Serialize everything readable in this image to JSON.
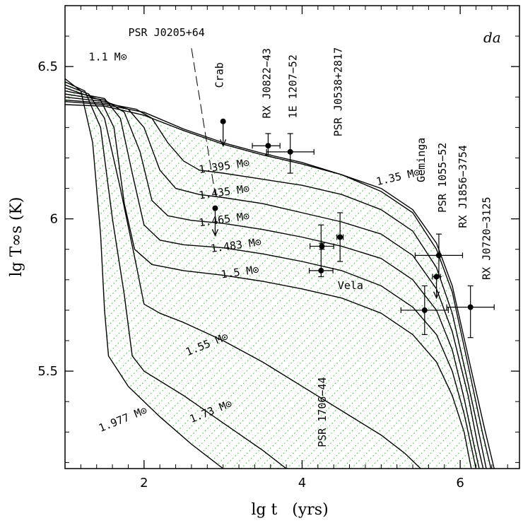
{
  "chart_data": {
    "type": "line",
    "title": "",
    "panel_label": "da",
    "xlabel": "lg t   (yrs)",
    "ylabel": "lg T∞s  (K)",
    "xlim": [
      1,
      6.75
    ],
    "ylim": [
      5.18,
      6.7
    ],
    "x_ticks": [
      {
        "v": 2,
        "label": "2"
      },
      {
        "v": 4,
        "label": "4"
      },
      {
        "v": 6,
        "label": "6"
      }
    ],
    "y_ticks": [
      {
        "v": 5.5,
        "label": "5.5"
      },
      {
        "v": 6,
        "label": "6"
      },
      {
        "v": 6.5,
        "label": "6.5"
      }
    ],
    "shaded_region": {
      "color": "#33cc33",
      "style": "dotted diagonal hatching",
      "description_free": true
    },
    "series": [
      {
        "name": "1.1 M⊙",
        "points": [
          [
            1,
            6.375
          ],
          [
            1.5,
            6.37
          ],
          [
            2,
            6.34
          ],
          [
            2.5,
            6.29
          ],
          [
            3,
            6.245
          ],
          [
            3.5,
            6.21
          ],
          [
            4,
            6.18
          ],
          [
            4.5,
            6.145
          ],
          [
            5,
            6.1
          ],
          [
            5.4,
            6.03
          ],
          [
            5.7,
            5.92
          ],
          [
            5.9,
            5.78
          ],
          [
            6.1,
            5.55
          ],
          [
            6.3,
            5.32
          ],
          [
            6.43,
            5.18
          ]
        ]
      },
      {
        "name": "1.35 M⊙",
        "points": [
          [
            1,
            6.385
          ],
          [
            1.5,
            6.375
          ],
          [
            2,
            6.35
          ],
          [
            2.5,
            6.295
          ],
          [
            3,
            6.25
          ],
          [
            3.5,
            6.215
          ],
          [
            4,
            6.185
          ],
          [
            4.5,
            6.145
          ],
          [
            5,
            6.09
          ],
          [
            5.4,
            6.02
          ],
          [
            5.7,
            5.9
          ],
          [
            5.9,
            5.76
          ],
          [
            6.1,
            5.52
          ],
          [
            6.28,
            5.3
          ],
          [
            6.39,
            5.18
          ]
        ]
      },
      {
        "name": "1.395 M⊙",
        "points": [
          [
            1,
            6.39
          ],
          [
            1.5,
            6.38
          ],
          [
            1.9,
            6.36
          ],
          [
            2.1,
            6.33
          ],
          [
            2.3,
            6.25
          ],
          [
            2.5,
            6.19
          ],
          [
            2.7,
            6.16
          ],
          [
            3,
            6.15
          ],
          [
            3.5,
            6.13
          ],
          [
            4,
            6.11
          ],
          [
            4.5,
            6.08
          ],
          [
            5,
            6.03
          ],
          [
            5.4,
            5.96
          ],
          [
            5.7,
            5.84
          ],
          [
            5.9,
            5.69
          ],
          [
            6.1,
            5.46
          ],
          [
            6.25,
            5.28
          ],
          [
            6.33,
            5.18
          ]
        ]
      },
      {
        "name": "1.435 M⊙",
        "points": [
          [
            1,
            6.4
          ],
          [
            1.5,
            6.385
          ],
          [
            1.8,
            6.36
          ],
          [
            2,
            6.3
          ],
          [
            2.2,
            6.16
          ],
          [
            2.4,
            6.1
          ],
          [
            2.7,
            6.08
          ],
          [
            3,
            6.07
          ],
          [
            3.5,
            6.05
          ],
          [
            4,
            6.02
          ],
          [
            4.5,
            5.99
          ],
          [
            5,
            5.95
          ],
          [
            5.4,
            5.88
          ],
          [
            5.7,
            5.77
          ],
          [
            5.9,
            5.63
          ],
          [
            6.1,
            5.42
          ],
          [
            6.22,
            5.26
          ],
          [
            6.29,
            5.18
          ]
        ]
      },
      {
        "name": "1.465 M⊙",
        "points": [
          [
            1,
            6.41
          ],
          [
            1.5,
            6.39
          ],
          [
            1.75,
            6.35
          ],
          [
            1.95,
            6.22
          ],
          [
            2.1,
            6.06
          ],
          [
            2.3,
            6.01
          ],
          [
            2.6,
            5.995
          ],
          [
            3,
            5.985
          ],
          [
            3.5,
            5.965
          ],
          [
            4,
            5.94
          ],
          [
            4.5,
            5.91
          ],
          [
            5,
            5.87
          ],
          [
            5.4,
            5.8
          ],
          [
            5.7,
            5.7
          ],
          [
            5.9,
            5.57
          ],
          [
            6.05,
            5.41
          ],
          [
            6.18,
            5.25
          ],
          [
            6.24,
            5.18
          ]
        ]
      },
      {
        "name": "1.483 M⊙",
        "points": [
          [
            1,
            6.42
          ],
          [
            1.5,
            6.395
          ],
          [
            1.7,
            6.33
          ],
          [
            1.85,
            6.15
          ],
          [
            2,
            5.98
          ],
          [
            2.2,
            5.93
          ],
          [
            2.5,
            5.915
          ],
          [
            3,
            5.905
          ],
          [
            3.5,
            5.885
          ],
          [
            4,
            5.86
          ],
          [
            4.5,
            5.83
          ],
          [
            5,
            5.78
          ],
          [
            5.4,
            5.71
          ],
          [
            5.7,
            5.62
          ],
          [
            5.9,
            5.5
          ],
          [
            6.05,
            5.36
          ],
          [
            6.15,
            5.24
          ],
          [
            6.2,
            5.18
          ]
        ]
      },
      {
        "name": "1.5 M⊙",
        "points": [
          [
            1,
            6.43
          ],
          [
            1.45,
            6.39
          ],
          [
            1.62,
            6.3
          ],
          [
            1.75,
            6.05
          ],
          [
            1.88,
            5.9
          ],
          [
            2.1,
            5.85
          ],
          [
            2.5,
            5.83
          ],
          [
            3,
            5.815
          ],
          [
            3.5,
            5.795
          ],
          [
            4,
            5.77
          ],
          [
            4.5,
            5.74
          ],
          [
            5,
            5.69
          ],
          [
            5.4,
            5.62
          ],
          [
            5.7,
            5.53
          ],
          [
            5.9,
            5.42
          ],
          [
            6.05,
            5.3
          ],
          [
            6.14,
            5.18
          ]
        ]
      },
      {
        "name": "1.55 M⊙",
        "points": [
          [
            1,
            6.44
          ],
          [
            1.3,
            6.41
          ],
          [
            1.5,
            6.33
          ],
          [
            1.7,
            6.1
          ],
          [
            1.9,
            5.85
          ],
          [
            2,
            5.72
          ],
          [
            2.2,
            5.69
          ],
          [
            2.5,
            5.66
          ],
          [
            3,
            5.6
          ],
          [
            3.5,
            5.53
          ],
          [
            4,
            5.45
          ],
          [
            4.5,
            5.37
          ],
          [
            5,
            5.29
          ],
          [
            5.3,
            5.23
          ],
          [
            5.5,
            5.18
          ]
        ]
      },
      {
        "name": "1.73 M⊙",
        "points": [
          [
            1,
            6.45
          ],
          [
            1.25,
            6.42
          ],
          [
            1.45,
            6.3
          ],
          [
            1.6,
            6.0
          ],
          [
            1.75,
            5.75
          ],
          [
            1.85,
            5.55
          ],
          [
            2,
            5.5
          ],
          [
            2.5,
            5.42
          ],
          [
            3,
            5.33
          ],
          [
            3.5,
            5.24
          ],
          [
            3.8,
            5.18
          ]
        ]
      },
      {
        "name": "1.977 M⊙",
        "points": [
          [
            1,
            6.46
          ],
          [
            1.2,
            6.42
          ],
          [
            1.35,
            6.25
          ],
          [
            1.45,
            5.95
          ],
          [
            1.5,
            5.7
          ],
          [
            1.55,
            5.55
          ],
          [
            1.8,
            5.45
          ],
          [
            2.2,
            5.35
          ],
          [
            2.6,
            5.26
          ],
          [
            3,
            5.18
          ]
        ]
      }
    ],
    "mass_labels": [
      {
        "text": "1.1 M⊙",
        "x": 1.3,
        "y": 6.52,
        "rot": 0
      },
      {
        "text": "1.35 M⊙",
        "x": 4.95,
        "y": 6.11,
        "rot": -13
      },
      {
        "text": "1.395 M⊙",
        "x": 2.7,
        "y": 6.15,
        "rot": -8
      },
      {
        "text": "1.435 M⊙",
        "x": 2.7,
        "y": 6.065,
        "rot": -8
      },
      {
        "text": "1.465 M⊙",
        "x": 2.7,
        "y": 5.975,
        "rot": -8
      },
      {
        "text": "1.483 M⊙",
        "x": 2.85,
        "y": 5.89,
        "rot": -8
      },
      {
        "text": "1.5 M⊙",
        "x": 2.98,
        "y": 5.805,
        "rot": -8
      },
      {
        "text": "1.55 M⊙",
        "x": 2.55,
        "y": 5.55,
        "rot": -22
      },
      {
        "text": "1.73 M⊙",
        "x": 2.6,
        "y": 5.33,
        "rot": -22
      },
      {
        "text": "1.977 M⊙",
        "x": 1.45,
        "y": 5.3,
        "rot": -22
      }
    ],
    "observations": [
      {
        "name": "Crab",
        "x": 3.0,
        "y": 6.32,
        "type": "upper",
        "arrow_to": 6.24,
        "label_x": 3.0,
        "label_y": 6.43,
        "rot": -90
      },
      {
        "name": "PSR J0205+64",
        "x": 2.9,
        "y": 6.035,
        "type": "upper",
        "arrow_to": 5.945,
        "label_x": 1.8,
        "label_y": 6.6,
        "rot": 0,
        "leader": true
      },
      {
        "name": "RX J0822−43",
        "x": 3.57,
        "y": 6.24,
        "xerr": [
          0.2,
          0.15
        ],
        "yerr": [
          0.03,
          0.04
        ],
        "label_x": 3.6,
        "label_y": 6.33,
        "rot": -90
      },
      {
        "name": "1E 1207−52",
        "x": 3.85,
        "y": 6.22,
        "xerr": [
          0.3,
          0.3
        ],
        "yerr": [
          0.07,
          0.06
        ],
        "label_x": 3.93,
        "label_y": 6.33,
        "rot": -90
      },
      {
        "name": "PSR J0538+2817",
        "x": 4.48,
        "y": 5.94,
        "xerr": [
          0.04,
          0.04
        ],
        "yerr": [
          0.08,
          0.08
        ],
        "label_x": 4.5,
        "label_y": 6.27,
        "rot": -90
      },
      {
        "name": "Vela",
        "x": 4.25,
        "y": 5.91,
        "xerr": [
          0.15,
          0.15
        ],
        "yerr": [
          0.01,
          0.01
        ],
        "label_x": 4.45,
        "label_y": 5.77,
        "rot": 0
      },
      {
        "name": "PSR 1706−44",
        "x": 4.24,
        "y": 5.83,
        "xerr": [
          0.15,
          0.15
        ],
        "yerr": [
          0.02,
          0.15
        ],
        "label_x": 4.3,
        "label_y": 5.25,
        "rot": -90
      },
      {
        "name": "Geminga",
        "x": 5.55,
        "y": 5.7,
        "xerr": [
          0.3,
          0.3
        ],
        "yerr": [
          0.08,
          0.08
        ],
        "label_x": 5.55,
        "label_y": 6.12,
        "rot": -90
      },
      {
        "name": "PSR 1055−52",
        "x": 5.73,
        "y": 5.88,
        "xerr": [
          0.3,
          0.3
        ],
        "yerr": [
          0.07,
          0.07
        ],
        "label_x": 5.82,
        "label_y": 6.02,
        "rot": -90
      },
      {
        "name": "RX J1856−3754",
        "x": 5.7,
        "y": 5.81,
        "type": "upper",
        "arrow_to": 5.74,
        "xerr": [
          0.05,
          0.05
        ],
        "label_x": 6.08,
        "label_y": 5.97,
        "rot": -90
      },
      {
        "name": "RX J0720−3125",
        "x": 6.13,
        "y": 5.71,
        "xerr": [
          0.3,
          0.3
        ],
        "yerr": [
          0.1,
          0.07
        ],
        "label_x": 6.38,
        "label_y": 5.8,
        "rot": -90
      }
    ]
  }
}
